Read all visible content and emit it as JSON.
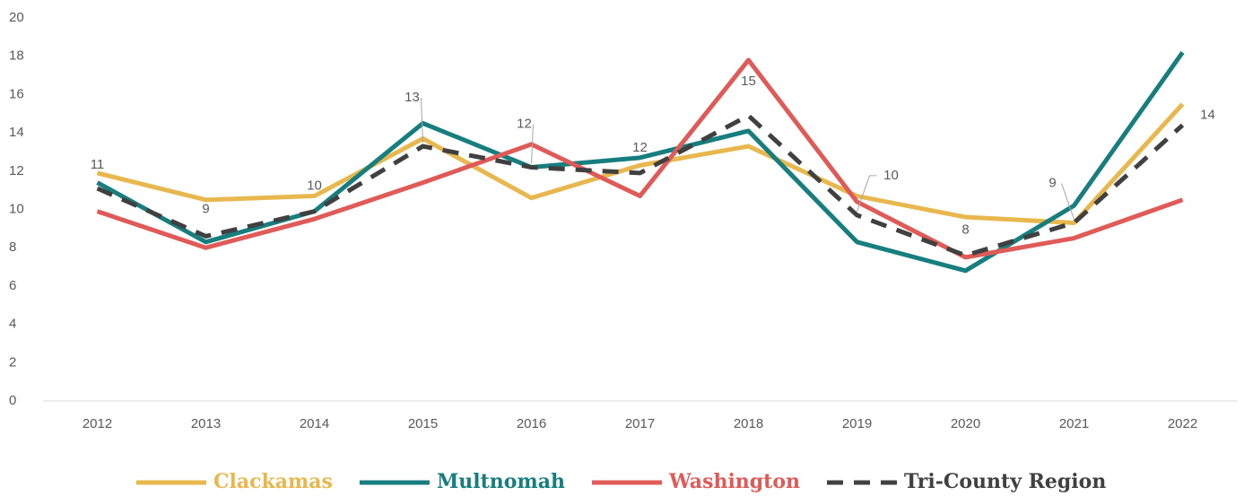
{
  "chart_data": {
    "type": "line",
    "categories": [
      "2012",
      "2013",
      "2014",
      "2015",
      "2016",
      "2017",
      "2018",
      "2019",
      "2020",
      "2021",
      "2022"
    ],
    "series": [
      {
        "name": "Clackamas",
        "color": "#e8b84f",
        "values": [
          11.9,
          10.5,
          10.7,
          13.7,
          10.6,
          12.3,
          13.3,
          10.7,
          9.6,
          9.3,
          15.5
        ]
      },
      {
        "name": "Multnomah",
        "color": "#177e80",
        "values": [
          11.4,
          8.3,
          9.9,
          14.5,
          12.2,
          12.7,
          14.1,
          8.3,
          6.8,
          10.2,
          18.2
        ]
      },
      {
        "name": "Washington",
        "color": "#e05a57",
        "values": [
          9.9,
          8.0,
          9.5,
          11.4,
          13.4,
          10.7,
          17.8,
          10.4,
          7.5,
          8.5,
          10.5
        ]
      },
      {
        "name": "Tri-County Region",
        "color": "#404040",
        "dashed": true,
        "values": [
          11.1,
          8.6,
          9.9,
          13.3,
          12.2,
          11.9,
          14.9,
          9.7,
          7.6,
          9.3,
          14.4
        ],
        "value_labels": [
          "11",
          "9",
          "10",
          "13",
          "12",
          "12",
          "15",
          "10",
          "8",
          "9",
          "14"
        ]
      }
    ],
    "ylim": [
      0,
      20
    ],
    "yticks": [
      0,
      2,
      4,
      6,
      8,
      10,
      12,
      14,
      16,
      18,
      20
    ],
    "grid": false,
    "legend": "bottom"
  }
}
